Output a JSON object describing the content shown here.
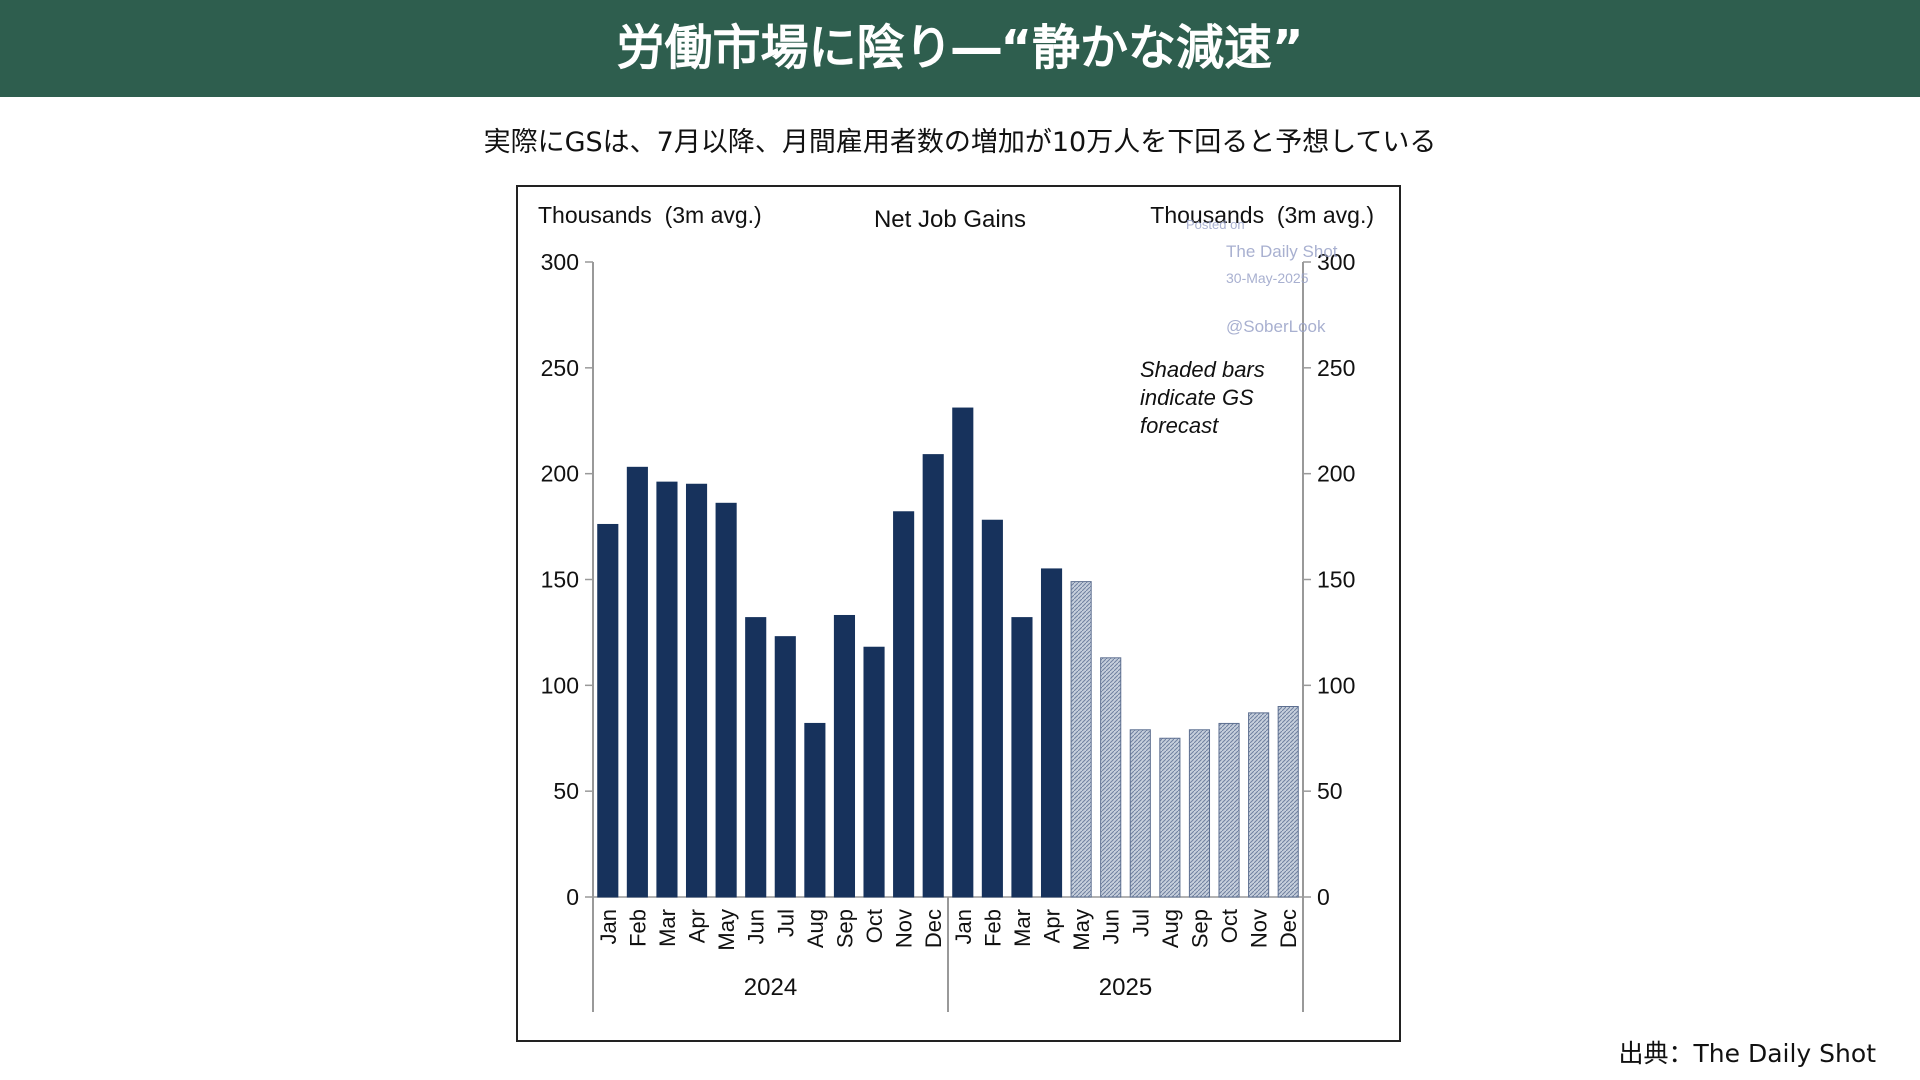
{
  "header": {
    "title": "労働市場に陰り―“静かな減速”"
  },
  "subtitle": "実際にGSは、7月以降、月間雇用者数の増加が10万人を下回ると予想している",
  "source": "出典：The Daily Shot",
  "chart_data": {
    "type": "bar",
    "title": "Net Job Gains",
    "ylabel_left": "Thousands  (3m avg.)",
    "ylabel_right": "Thousands  (3m avg.)",
    "ylim": [
      0,
      300
    ],
    "yticks": [
      0,
      50,
      100,
      150,
      200,
      250,
      300
    ],
    "categories": [
      "Jan",
      "Feb",
      "Mar",
      "Apr",
      "May",
      "Jun",
      "Jul",
      "Aug",
      "Sep",
      "Oct",
      "Nov",
      "Dec",
      "Jan",
      "Feb",
      "Mar",
      "Apr",
      "May",
      "Jun",
      "Jul",
      "Aug",
      "Sep",
      "Oct",
      "Nov",
      "Dec"
    ],
    "groups": [
      {
        "label": "2024",
        "count": 12
      },
      {
        "label": "2025",
        "count": 12
      }
    ],
    "values": [
      176,
      203,
      196,
      195,
      186,
      132,
      123,
      82,
      133,
      118,
      182,
      209,
      231,
      178,
      132,
      155,
      149,
      113,
      79,
      75,
      79,
      82,
      87,
      90
    ],
    "forecast_from_index": 16,
    "colors": {
      "actual": "#17325c",
      "forecast": "#a9b6c8"
    },
    "annotation": [
      "Shaded bars",
      "indicate GS",
      "forecast"
    ],
    "watermark": [
      "Posted on",
      "The Daily Shot",
      "30-May-2025",
      "@SoberLook"
    ]
  }
}
